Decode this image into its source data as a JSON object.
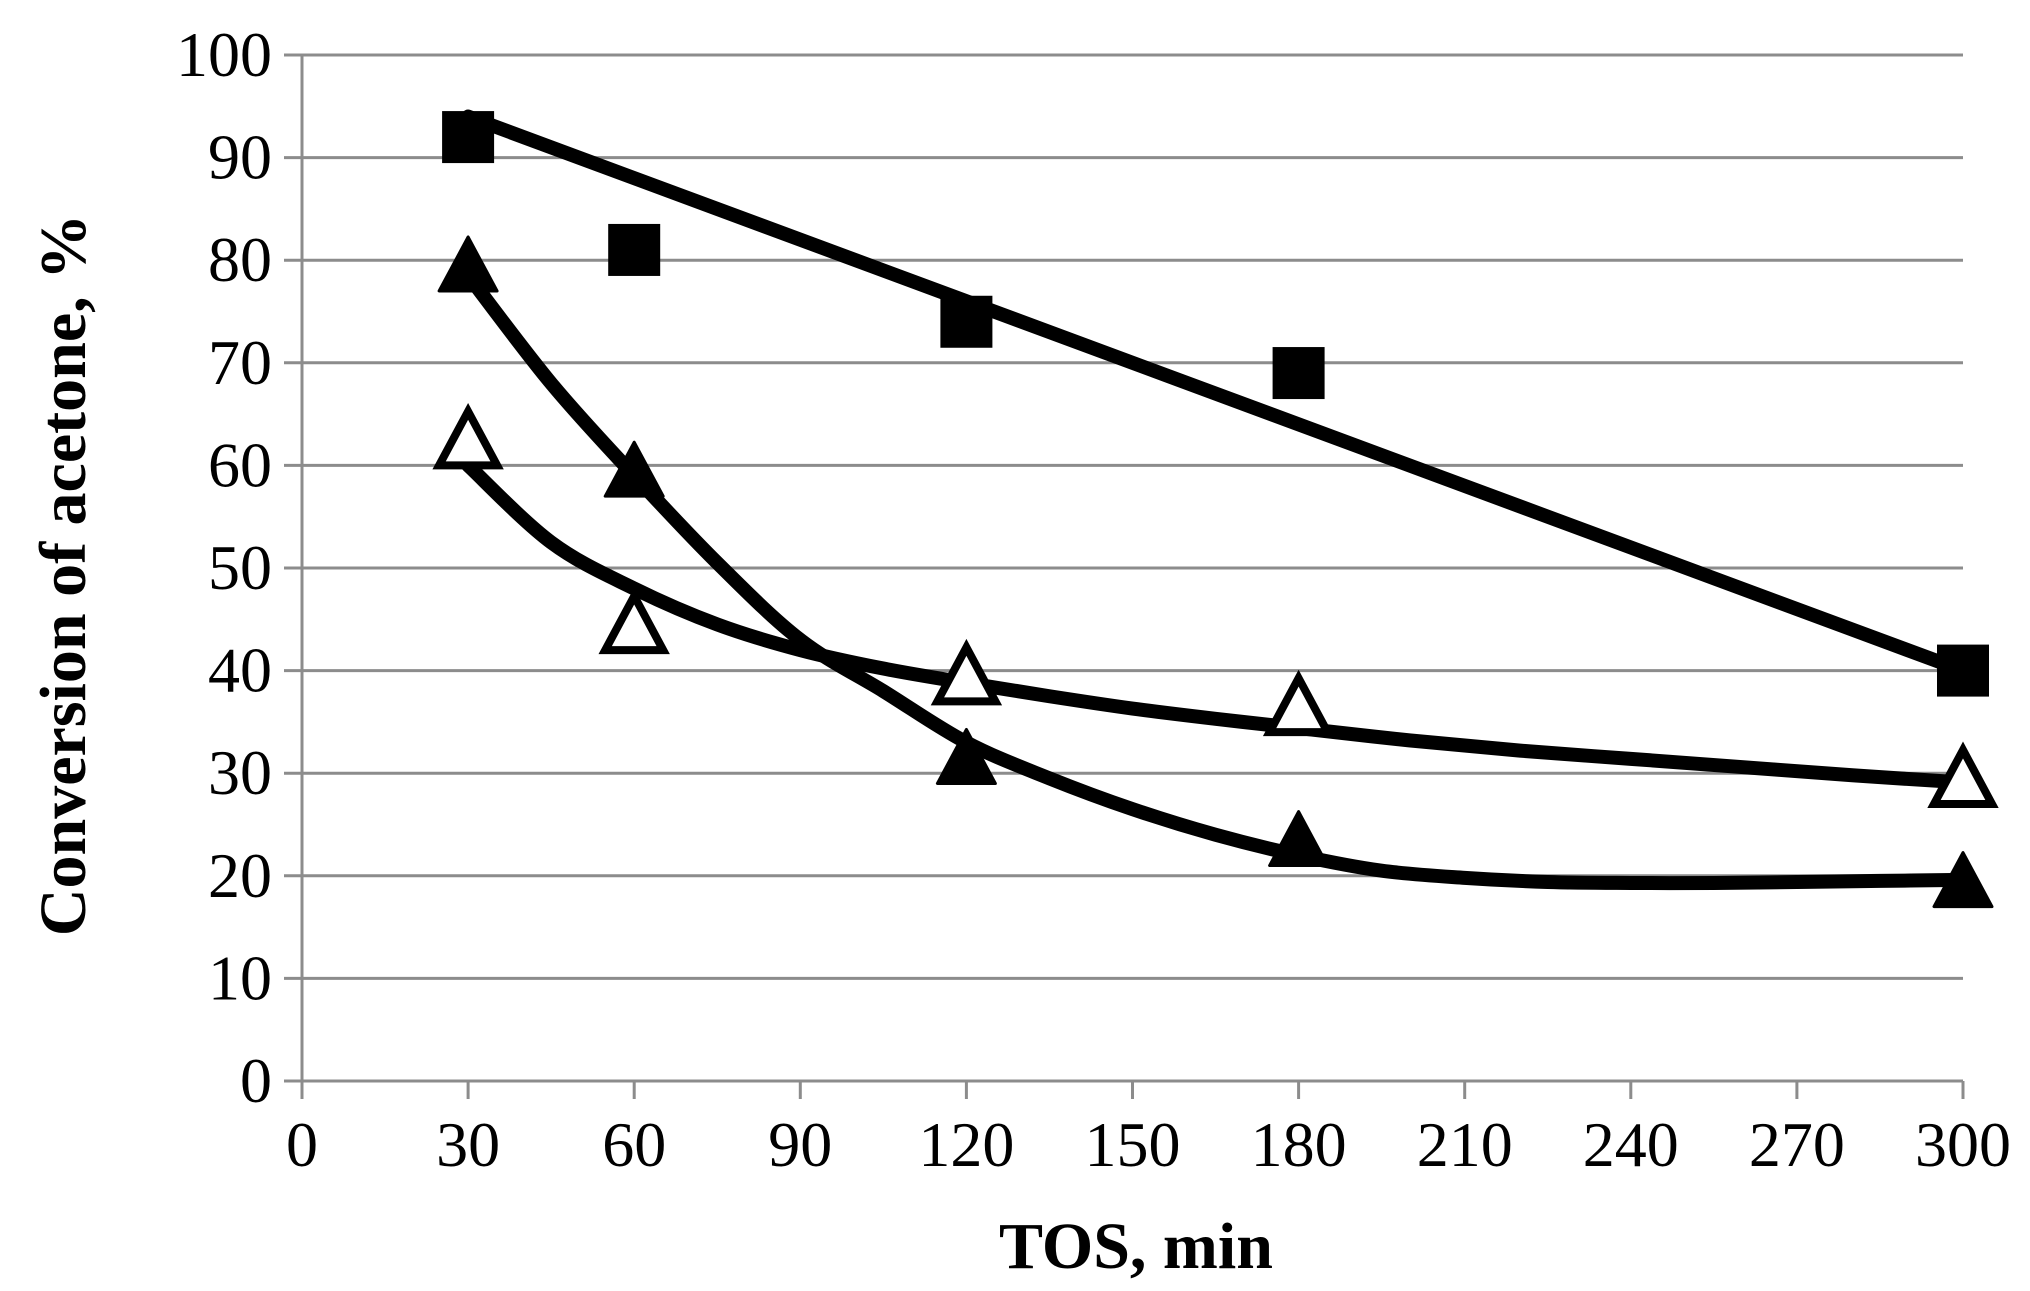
{
  "chart_data": {
    "type": "scatter",
    "title": "",
    "xlabel": "TOS, min",
    "ylabel": "Conversion of acetone, %",
    "xlim": [
      0,
      300
    ],
    "ylim": [
      0,
      100
    ],
    "xticks": [
      0,
      30,
      60,
      90,
      120,
      150,
      180,
      210,
      240,
      270,
      300
    ],
    "yticks": [
      0,
      10,
      20,
      30,
      40,
      50,
      60,
      70,
      80,
      90,
      100
    ],
    "grid": "horizontal",
    "legend": "none",
    "series": [
      {
        "marker": "filled-square",
        "x": [
          30,
          60,
          120,
          180,
          300
        ],
        "y": [
          92,
          81,
          74,
          69,
          40
        ],
        "trend": {
          "x": [
            30,
            300
          ],
          "y": [
            94,
            40
          ]
        }
      },
      {
        "marker": "filled-triangle",
        "x": [
          30,
          60,
          120,
          180,
          300
        ],
        "y": [
          79,
          59,
          31,
          23,
          19
        ],
        "trend": {
          "x": [
            30,
            45,
            60,
            75,
            90,
            105,
            120,
            135,
            150,
            165,
            180,
            195,
            210,
            225,
            240,
            255,
            270,
            285,
            300
          ],
          "y": [
            78.5,
            68,
            59,
            50.5,
            43,
            38,
            33,
            29.5,
            26.5,
            24,
            22,
            20.5,
            19.8,
            19.4,
            19.3,
            19.3,
            19.4,
            19.5,
            19.6
          ]
        }
      },
      {
        "marker": "open-triangle",
        "x": [
          30,
          60,
          120,
          180,
          300
        ],
        "y": [
          62,
          44,
          39,
          36,
          29
        ],
        "trend": {
          "x": [
            30,
            45,
            60,
            75,
            90,
            105,
            120,
            135,
            150,
            165,
            180,
            200,
            220,
            240,
            260,
            280,
            300
          ],
          "y": [
            60,
            52.5,
            48,
            44.5,
            42,
            40.2,
            38.8,
            37.5,
            36.3,
            35.3,
            34.4,
            33.2,
            32.2,
            31.4,
            30.6,
            29.8,
            29.1
          ]
        }
      }
    ],
    "colors": {
      "marks": "#000000",
      "grid": "#8c8c8c",
      "axis": "#8c8c8c"
    }
  }
}
